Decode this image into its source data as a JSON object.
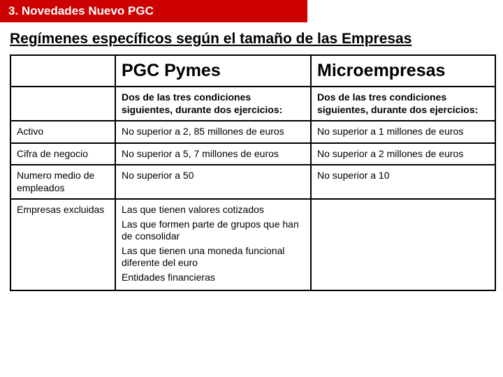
{
  "banner": {
    "text": "3. Novedades Nuevo PGC"
  },
  "heading": {
    "text": "Regímenes específicos según el tamaño de las Empresas"
  },
  "table": {
    "head": {
      "pymes": "PGC Pymes",
      "micro": "Microempresas",
      "pymes_sub": "Dos de las tres condiciones siguientes, durante dos ejercicios:",
      "micro_sub": "Dos de las tres condiciones siguientes, durante dos ejercicios:"
    },
    "rows": {
      "activo": {
        "label": "Activo",
        "pymes": "No superior a 2, 85 millones de euros",
        "micro": "No superior a 1 millones de euros"
      },
      "cifra": {
        "label": "Cifra de negocio",
        "pymes": "No superior a 5, 7 millones de euros",
        "micro": "No superior a 2 millones de euros"
      },
      "empleados": {
        "label": "Numero medio de empleados",
        "pymes": "No superior a 50",
        "micro": "No superior a 10"
      },
      "excluidas": {
        "label": "Empresas excluidas",
        "pymes_lines": {
          "l1": "Las que tienen valores cotizados",
          "l2": "Las que formen parte de grupos que han de consolidar",
          "l3": "Las que tienen una moneda funcional diferente del euro",
          "l4": "Entidades financieras"
        },
        "micro": ""
      }
    }
  }
}
